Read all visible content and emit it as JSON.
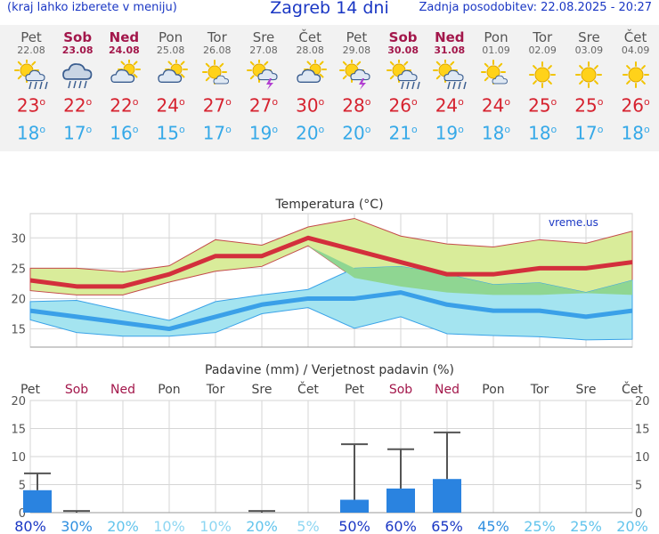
{
  "header": {
    "left_note": "(kraj lahko izberete v meniju)",
    "title": "Zagreb 14 dni",
    "updated": "Zadnja posodobitev: 22.08.2025 - 20:27"
  },
  "forecast": [
    {
      "day": "Pet",
      "date": "22.08",
      "weekend": false,
      "icon": "sun-cloud-rain-icon",
      "max": "23",
      "min": "18"
    },
    {
      "day": "Sob",
      "date": "23.08",
      "weekend": true,
      "icon": "cloud-rain-icon",
      "max": "22",
      "min": "17"
    },
    {
      "day": "Ned",
      "date": "24.08",
      "weekend": true,
      "icon": "sun-cloud-icon",
      "max": "22",
      "min": "16"
    },
    {
      "day": "Pon",
      "date": "25.08",
      "weekend": false,
      "icon": "sun-cloud-icon",
      "max": "24",
      "min": "15"
    },
    {
      "day": "Tor",
      "date": "26.08",
      "weekend": false,
      "icon": "sun-small-cloud-icon",
      "max": "27",
      "min": "17"
    },
    {
      "day": "Sre",
      "date": "27.08",
      "weekend": false,
      "icon": "sun-cloud-storm-icon",
      "max": "27",
      "min": "19"
    },
    {
      "day": "Čet",
      "date": "28.08",
      "weekend": false,
      "icon": "sun-cloud-icon",
      "max": "30",
      "min": "20"
    },
    {
      "day": "Pet",
      "date": "29.08",
      "weekend": false,
      "icon": "sun-cloud-storm-icon",
      "max": "28",
      "min": "20"
    },
    {
      "day": "Sob",
      "date": "30.08",
      "weekend": true,
      "icon": "sun-cloud-rain-icon",
      "max": "26",
      "min": "21"
    },
    {
      "day": "Ned",
      "date": "31.08",
      "weekend": true,
      "icon": "sun-cloud-rain-icon",
      "max": "24",
      "min": "19"
    },
    {
      "day": "Pon",
      "date": "01.09",
      "weekend": false,
      "icon": "sun-small-cloud-icon",
      "max": "24",
      "min": "18"
    },
    {
      "day": "Tor",
      "date": "02.09",
      "weekend": false,
      "icon": "sun-icon",
      "max": "25",
      "min": "18"
    },
    {
      "day": "Sre",
      "date": "03.09",
      "weekend": false,
      "icon": "sun-icon",
      "max": "25",
      "min": "17"
    },
    {
      "day": "Čet",
      "date": "04.09",
      "weekend": false,
      "icon": "sun-icon",
      "max": "26",
      "min": "18"
    }
  ],
  "colors": {
    "max_temp": "#d6222f",
    "min_temp": "#36a9e8",
    "max_band": "#d9ec9a",
    "min_band": "#a4e4f0",
    "overlap_band": "#8fd692",
    "precip_bar": "#2a83e0",
    "weekend": "#a3174b",
    "prob_strong": "#1a37c4",
    "prob_light": "#62c4ec"
  },
  "chart_data": [
    {
      "type": "line",
      "title": "Temperatura (°C)",
      "watermark": "vreme.us",
      "grid": true,
      "x": [
        "Pet",
        "Sob",
        "Ned",
        "Pon",
        "Tor",
        "Sre",
        "Čet",
        "Pet",
        "Sob",
        "Ned",
        "Pon",
        "Tor",
        "Sre",
        "Čet"
      ],
      "ylim": [
        12,
        34
      ],
      "yticks": [
        15,
        20,
        25,
        30
      ],
      "series": [
        {
          "role": "max",
          "values": [
            23,
            22,
            22,
            24,
            27,
            27,
            30,
            28,
            26,
            24,
            24,
            25,
            25,
            26
          ]
        },
        {
          "role": "max_high",
          "values": [
            25,
            25,
            24.4,
            25.4,
            29.7,
            28.8,
            31.8,
            33.2,
            30.3,
            29,
            28.5,
            29.7,
            29.1,
            31.1
          ]
        },
        {
          "role": "max_low",
          "values": [
            21.3,
            20.6,
            20.6,
            22.7,
            24.5,
            25.3,
            28.7,
            23.4,
            22,
            21,
            20.6,
            20.6,
            20.9,
            20.6
          ]
        },
        {
          "role": "min",
          "values": [
            18,
            17,
            16,
            15,
            17,
            19,
            20,
            20,
            21,
            19,
            18,
            18,
            17,
            18
          ]
        },
        {
          "role": "min_high",
          "values": [
            19.5,
            19.7,
            18,
            16.4,
            19.5,
            20.6,
            21.5,
            25,
            25.3,
            24,
            22.3,
            22.6,
            21,
            23
          ]
        },
        {
          "role": "min_low",
          "values": [
            16.5,
            14.4,
            13.8,
            13.8,
            14.4,
            17.5,
            18.5,
            15.1,
            17,
            14.2,
            13.9,
            13.7,
            13.2,
            13.3
          ]
        }
      ]
    },
    {
      "type": "bar",
      "title": "Padavine (mm) / Verjetnost padavin (%)",
      "categories": [
        "Pet",
        "Sob",
        "Ned",
        "Pon",
        "Tor",
        "Sre",
        "Čet",
        "Pet",
        "Sob",
        "Ned",
        "Pon",
        "Tor",
        "Sre",
        "Čet"
      ],
      "ylim": [
        0,
        20
      ],
      "yticks": [
        0,
        5,
        10,
        15,
        20
      ],
      "values": [
        4,
        0,
        0,
        0,
        0,
        0,
        0,
        2.3,
        4.3,
        6,
        0,
        0,
        0,
        0
      ],
      "max_values": [
        7,
        0.3,
        0,
        0,
        0,
        0.3,
        0,
        12.2,
        11.3,
        14.3,
        0,
        0,
        0,
        0
      ],
      "probabilities": [
        "80%",
        "30%",
        "20%",
        "10%",
        "10%",
        "20%",
        "5%",
        "50%",
        "60%",
        "65%",
        "45%",
        "25%",
        "25%",
        "20%"
      ]
    }
  ]
}
